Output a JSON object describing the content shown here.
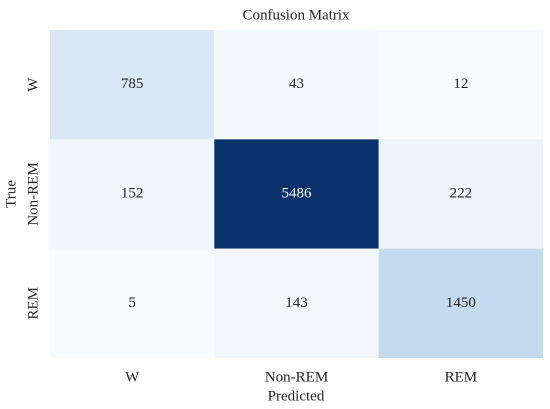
{
  "chart_data": {
    "type": "heatmap",
    "title": "Confusion Matrix",
    "x_label": "Predicted",
    "y_label": "True",
    "x_categories": [
      "W",
      "Non-REM",
      "REM"
    ],
    "y_categories": [
      "W",
      "Non-REM",
      "REM"
    ],
    "values": [
      [
        785,
        43,
        12
      ],
      [
        152,
        5486,
        222
      ],
      [
        5,
        143,
        1450
      ]
    ],
    "colors": [
      [
        "#dae8f6",
        "#f4f9fe",
        "#f7fbff"
      ],
      [
        "#eff6fc",
        "#08306b",
        "#edf4fc"
      ],
      [
        "#f7fbff",
        "#f1f7fd",
        "#c4daee"
      ]
    ]
  }
}
